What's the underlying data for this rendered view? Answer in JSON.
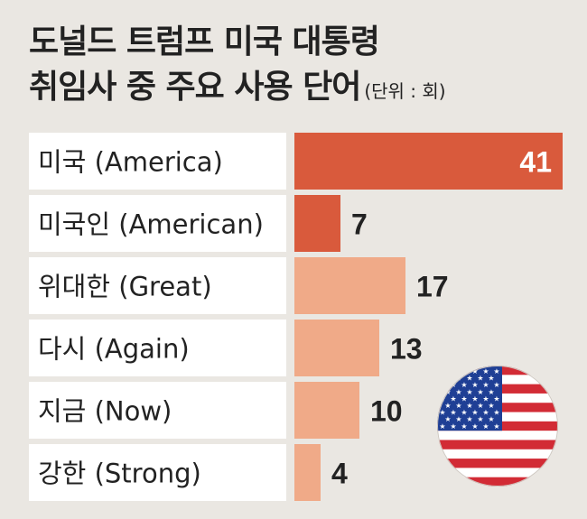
{
  "header": {
    "title_line1": "도널드 트럼프 미국 대통령",
    "title_line2": "취임사 중 주요 사용 단어",
    "unit": "(단위 : 회)"
  },
  "chart_data": {
    "type": "bar",
    "orientation": "horizontal",
    "title": "도널드 트럼프 미국 대통령 취임사 중 주요 사용 단어",
    "unit": "(단위 : 회)",
    "categories": [
      "미국 (America)",
      "미국인 (American)",
      "위대한 (Great)",
      "다시 (Again)",
      "지금 (Now)",
      "강한 (Strong)"
    ],
    "values": [
      41,
      7,
      17,
      13,
      10,
      4
    ],
    "xlim": [
      0,
      41
    ],
    "colors": [
      "#d95a3c",
      "#d95a3c",
      "#f0aa88",
      "#f0aa88",
      "#f0aa88",
      "#f0aa88"
    ],
    "label_colors": [
      "#ffffff",
      "#222222",
      "#222222",
      "#222222",
      "#222222",
      "#222222"
    ],
    "grid": false,
    "legend": "none"
  },
  "decoration": {
    "icon": "us-flag-icon"
  }
}
